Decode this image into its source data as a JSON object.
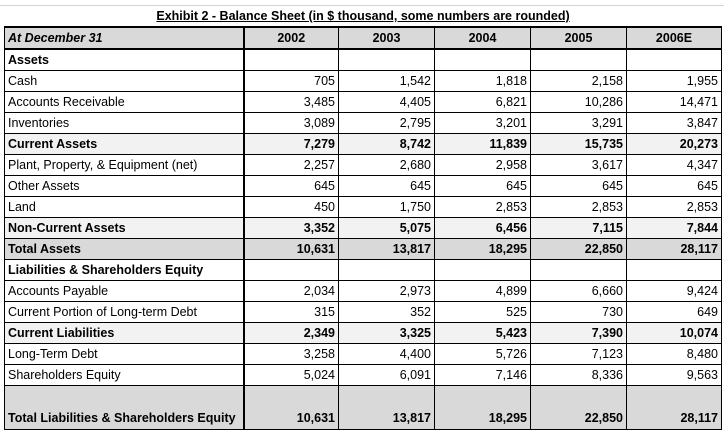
{
  "title": "Exhibit 2 - Balance Sheet (in $ thousand, some numbers are rounded)",
  "header": {
    "label": "At December 31",
    "years": [
      "2002",
      "2003",
      "2004",
      "2005",
      "2006E"
    ]
  },
  "rows": [
    {
      "label": "Assets",
      "type": "section",
      "values": [
        "",
        "",
        "",
        "",
        ""
      ]
    },
    {
      "label": "Cash",
      "type": "item",
      "values": [
        "705",
        "1,542",
        "1,818",
        "2,158",
        "1,955"
      ]
    },
    {
      "label": "Accounts Receivable",
      "type": "item",
      "values": [
        "3,485",
        "4,405",
        "6,821",
        "10,286",
        "14,471"
      ]
    },
    {
      "label": "Inventories",
      "type": "item",
      "values": [
        "3,089",
        "2,795",
        "3,201",
        "3,291",
        "3,847"
      ]
    },
    {
      "label": "Current Assets",
      "type": "subtotal",
      "values": [
        "7,279",
        "8,742",
        "11,839",
        "15,735",
        "20,273"
      ]
    },
    {
      "label": "Plant, Property, & Equipment (net)",
      "type": "item",
      "values": [
        "2,257",
        "2,680",
        "2,958",
        "3,617",
        "4,347"
      ]
    },
    {
      "label": "Other Assets",
      "type": "item",
      "values": [
        "645",
        "645",
        "645",
        "645",
        "645"
      ]
    },
    {
      "label": "Land",
      "type": "item",
      "values": [
        "450",
        "1,750",
        "2,853",
        "2,853",
        "2,853"
      ]
    },
    {
      "label": "Non-Current Assets",
      "type": "subtotal",
      "values": [
        "3,352",
        "5,075",
        "6,456",
        "7,115",
        "7,844"
      ]
    },
    {
      "label": "Total Assets",
      "type": "total",
      "values": [
        "10,631",
        "13,817",
        "18,295",
        "22,850",
        "28,117"
      ]
    },
    {
      "label": "Liabilities & Shareholders Equity",
      "type": "section",
      "values": [
        "",
        "",
        "",
        "",
        ""
      ]
    },
    {
      "label": "Accounts Payable",
      "type": "item",
      "values": [
        "2,034",
        "2,973",
        "4,899",
        "6,660",
        "9,424"
      ]
    },
    {
      "label": "Current Portion of Long-term Debt",
      "type": "item",
      "values": [
        "315",
        "352",
        "525",
        "730",
        "649"
      ]
    },
    {
      "label": "Current Liabilities",
      "type": "subtotal",
      "values": [
        "2,349",
        "3,325",
        "5,423",
        "7,390",
        "10,074"
      ]
    },
    {
      "label": "Long-Term Debt",
      "type": "item",
      "values": [
        "3,258",
        "4,400",
        "5,726",
        "7,123",
        "8,480"
      ]
    },
    {
      "label": "Shareholders Equity",
      "type": "item",
      "values": [
        "5,024",
        "6,091",
        "7,146",
        "8,336",
        "9,563"
      ]
    },
    {
      "label": "Total Liabilities & Shareholders Equity",
      "type": "total tall",
      "values": [
        "10,631",
        "13,817",
        "18,295",
        "22,850",
        "28,117"
      ]
    }
  ]
}
